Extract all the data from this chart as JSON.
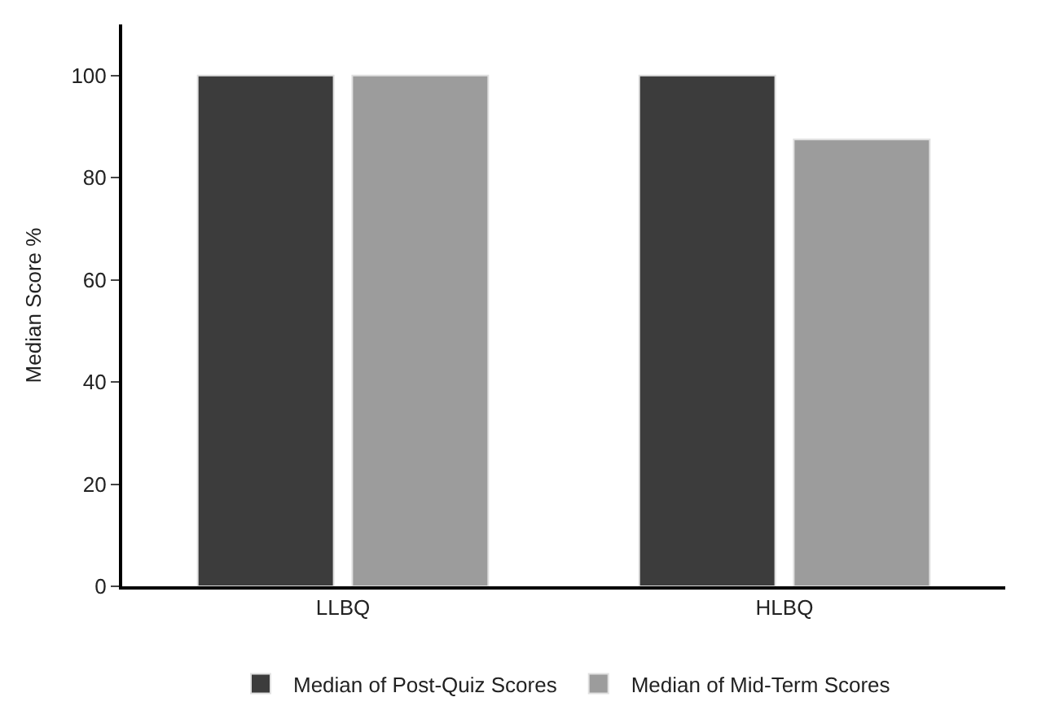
{
  "chart_data": {
    "type": "bar",
    "ylabel": "Median Score %",
    "categories": [
      "LLBQ",
      "HLBQ"
    ],
    "series": [
      {
        "name": "Median of Post-Quiz Scores",
        "color": "#3c3c3c",
        "values": [
          100,
          100
        ]
      },
      {
        "name": "Median of Mid-Term Scores",
        "color": "#9c9c9c",
        "values": [
          100,
          87.5
        ]
      }
    ],
    "ylim": [
      0,
      110
    ],
    "yticks": [
      0,
      20,
      40,
      60,
      80,
      100
    ],
    "legend": "bottom"
  }
}
